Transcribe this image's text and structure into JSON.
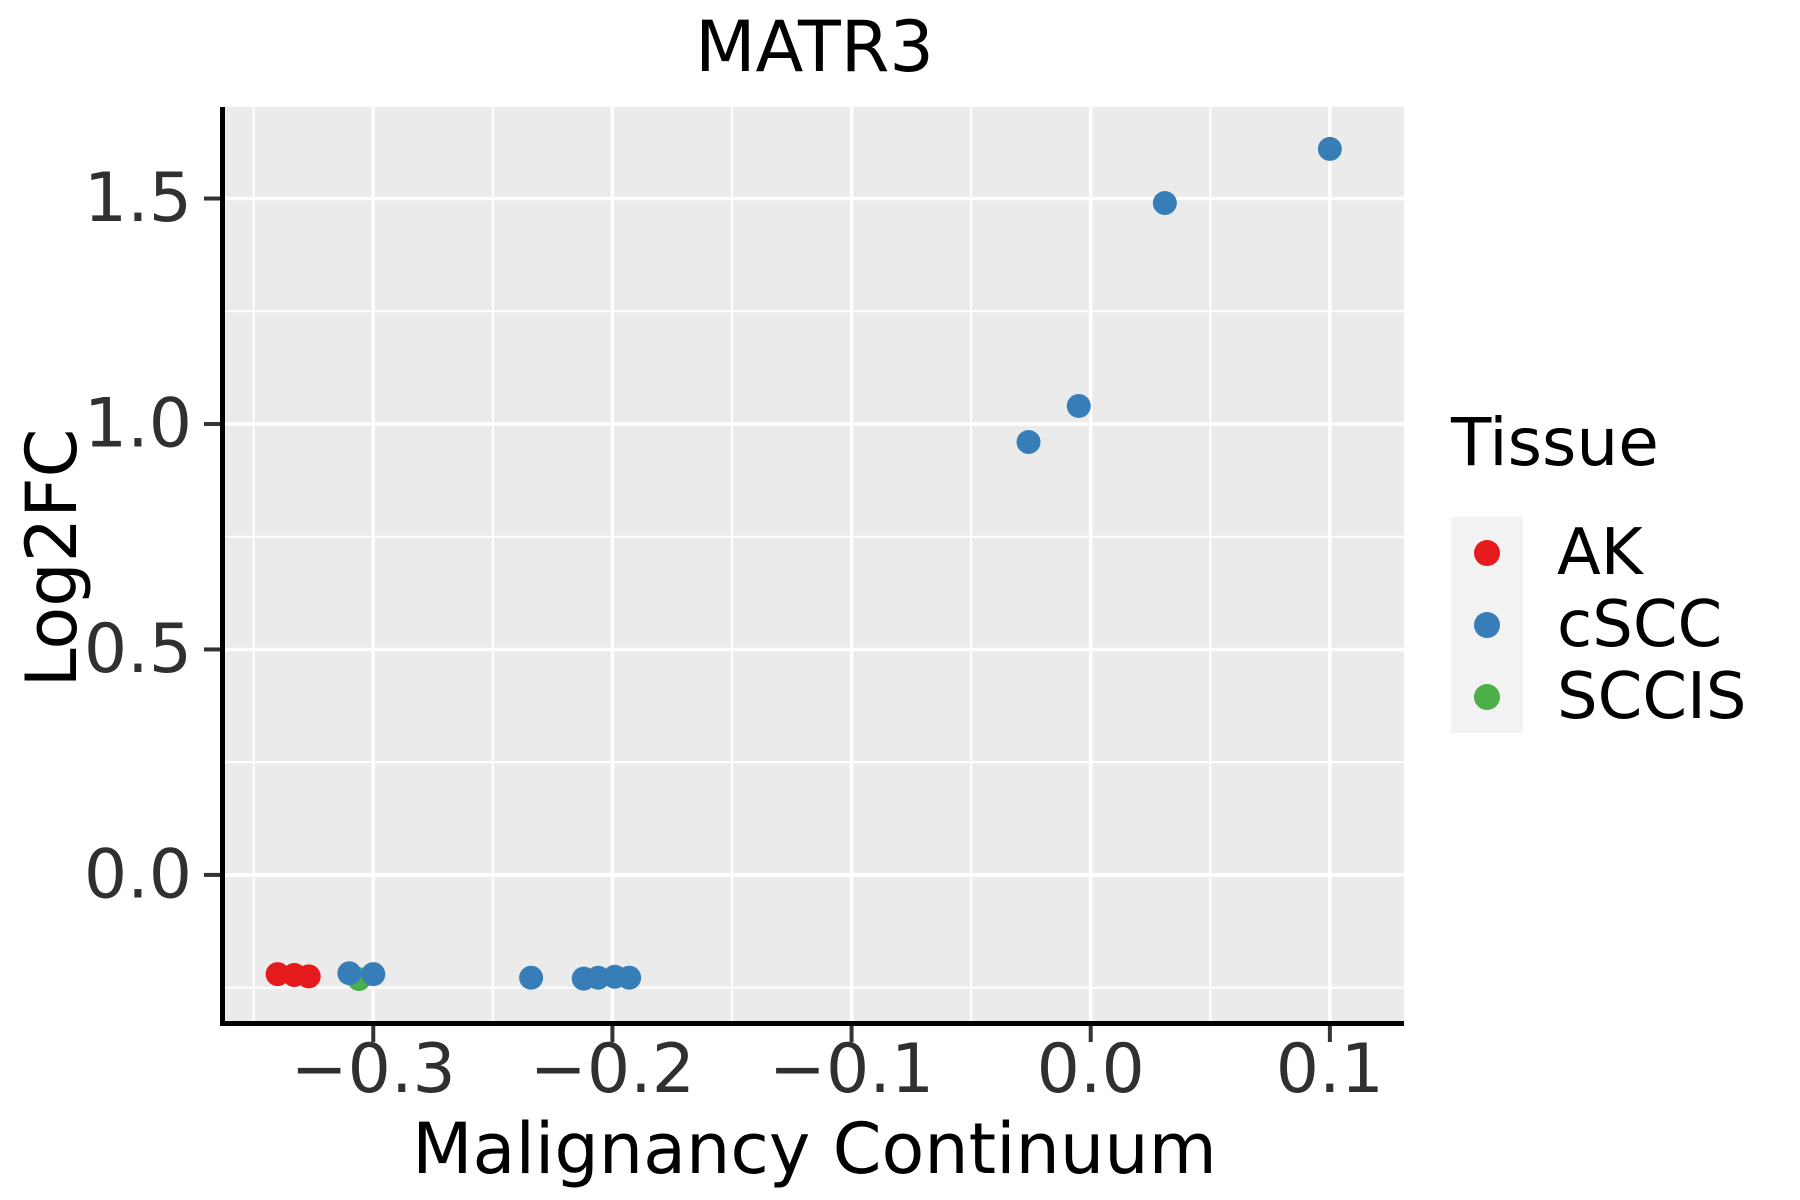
{
  "title": "MATR3",
  "x_axis": {
    "label": "Malignancy Continuum",
    "ticks": [
      {
        "value": -0.3,
        "label": "−0.3"
      },
      {
        "value": -0.2,
        "label": "−0.2"
      },
      {
        "value": -0.1,
        "label": "−0.1"
      },
      {
        "value": 0.0,
        "label": "0.0"
      },
      {
        "value": 0.1,
        "label": "0.1"
      }
    ]
  },
  "y_axis": {
    "label": "Log2FC",
    "ticks": [
      {
        "value": 0.0,
        "label": "0.0"
      },
      {
        "value": 0.5,
        "label": "0.5"
      },
      {
        "value": 1.0,
        "label": "1.0"
      },
      {
        "value": 1.5,
        "label": "1.5"
      }
    ]
  },
  "legend": {
    "title": "Tissue",
    "items": [
      {
        "label": "AK",
        "color": "#E41A1C"
      },
      {
        "label": "cSCC",
        "color": "#377EB8"
      },
      {
        "label": "SCCIS",
        "color": "#4DAF4A"
      }
    ]
  },
  "colors": {
    "panel_bg": "#EBEBEB",
    "grid": "#FFFFFF",
    "axis_line": "#000000",
    "tick_mark": "#333333",
    "tick_label": "#303030",
    "legend_key_bg": "#F2F2F2"
  },
  "chart_data": {
    "type": "scatter",
    "title": "MATR3",
    "xlabel": "Malignancy Continuum",
    "ylabel": "Log2FC",
    "xlim": [
      -0.362,
      0.131
    ],
    "ylim": [
      -0.324,
      1.703
    ],
    "x_major_ticks": [
      -0.3,
      -0.2,
      -0.1,
      0.0,
      0.1
    ],
    "y_major_ticks": [
      0.0,
      0.5,
      1.0,
      1.5
    ],
    "x_minor_step": 0.05,
    "y_minor_step": 0.25,
    "grid": true,
    "legend_position": "right",
    "point_radius": 12,
    "draw_order": [
      "AK",
      "SCCIS",
      "cSCC"
    ],
    "series": [
      {
        "name": "AK",
        "color": "#E41A1C",
        "points": [
          [
            -0.34,
            -0.22
          ],
          [
            -0.333,
            -0.222
          ],
          [
            -0.327,
            -0.225
          ]
        ]
      },
      {
        "name": "cSCC",
        "color": "#377EB8",
        "points": [
          [
            -0.31,
            -0.218
          ],
          [
            -0.3,
            -0.22
          ],
          [
            -0.234,
            -0.228
          ],
          [
            -0.212,
            -0.23
          ],
          [
            -0.206,
            -0.228
          ],
          [
            -0.199,
            -0.226
          ],
          [
            -0.193,
            -0.228
          ],
          [
            -0.026,
            0.96
          ],
          [
            -0.005,
            1.04
          ],
          [
            0.031,
            1.49
          ],
          [
            0.1,
            1.61
          ]
        ]
      },
      {
        "name": "SCCIS",
        "color": "#4DAF4A",
        "points": [
          [
            -0.306,
            -0.231
          ]
        ]
      }
    ]
  }
}
